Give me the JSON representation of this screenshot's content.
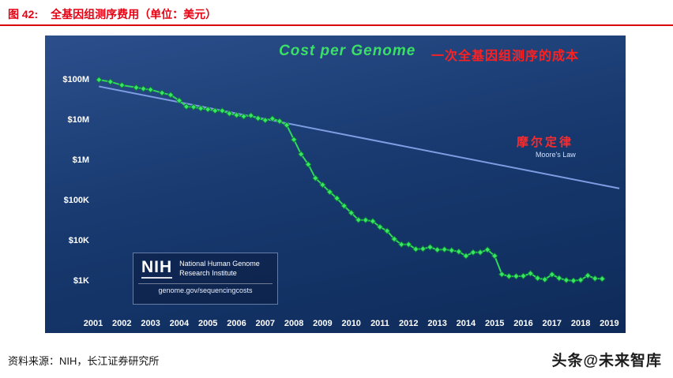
{
  "header": {
    "figure_label": "图 42:",
    "figure_title": "全基因组测序费用（单位：美元）"
  },
  "footer": {
    "source": "资料来源：NIH，长江证券研究所",
    "watermark": "头条@未来智库"
  },
  "chart": {
    "title_en": "Cost per Genome",
    "title_zh": "一次全基因组测序的成本",
    "moore_label_zh": "摩尔定律",
    "moore_label_en": "Moore's Law",
    "nih_logo": "NIH",
    "nih_name_line1": "National Human Genome",
    "nih_name_line2": "Research Institute",
    "nih_url": "genome.gov/sequencingcosts",
    "colors": {
      "background_navy": "#16376c",
      "series_green": "#2fd858",
      "marker_green_fill": "#39e468",
      "marker_green_stroke": "#0a7d33",
      "moore_blue": "#7e9ce2",
      "title_green": "#3ae066",
      "accent_red": "#ff2020",
      "caption_red": "#e60012",
      "tick_white": "#ffffff"
    }
  },
  "chart_data": {
    "type": "line",
    "title": "Cost per Genome",
    "subtitle_zh": "一次全基因组测序的成本",
    "y_scale": "log",
    "grid": false,
    "xlim": [
      2000.9,
      2019.4
    ],
    "ylim": [
      1000,
      100000000
    ],
    "x_ticks": [
      2001,
      2002,
      2003,
      2004,
      2005,
      2006,
      2007,
      2008,
      2009,
      2010,
      2011,
      2012,
      2013,
      2014,
      2015,
      2016,
      2017,
      2018,
      2019
    ],
    "y_ticks": [
      {
        "label": "$100M",
        "value": 100000000
      },
      {
        "label": "$10M",
        "value": 10000000
      },
      {
        "label": "$1M",
        "value": 1000000
      },
      {
        "label": "$100K",
        "value": 100000
      },
      {
        "label": "$10K",
        "value": 10000
      },
      {
        "label": "$1K",
        "value": 1000
      }
    ],
    "series": [
      {
        "name": "Cost per Genome",
        "color": "#2fd858",
        "marker": "diamond",
        "x": [
          2001.2,
          2001.6,
          2002.0,
          2002.5,
          2002.75,
          2003.0,
          2003.4,
          2003.7,
          2004.0,
          2004.25,
          2004.5,
          2004.75,
          2005.0,
          2005.25,
          2005.5,
          2005.75,
          2006.0,
          2006.25,
          2006.5,
          2006.75,
          2007.0,
          2007.25,
          2007.5,
          2007.75,
          2008.0,
          2008.25,
          2008.5,
          2008.75,
          2009.0,
          2009.25,
          2009.5,
          2009.75,
          2010.0,
          2010.25,
          2010.5,
          2010.75,
          2011.0,
          2011.25,
          2011.5,
          2011.75,
          2012.0,
          2012.25,
          2012.5,
          2012.75,
          2013.0,
          2013.25,
          2013.5,
          2013.75,
          2014.0,
          2014.25,
          2014.5,
          2014.75,
          2015.0,
          2015.25,
          2015.5,
          2015.75,
          2016.0,
          2016.25,
          2016.5,
          2016.75,
          2017.0,
          2017.25,
          2017.5,
          2017.75,
          2018.0,
          2018.25,
          2018.5,
          2018.75
        ],
        "y": [
          95000000,
          85000000,
          70000000,
          61000000,
          57000000,
          54000000,
          45000000,
          40000000,
          29000000,
          20500000,
          20000000,
          18500000,
          17500000,
          16200000,
          16200000,
          13800000,
          12600000,
          11700000,
          12300000,
          10500000,
          9400000,
          10300000,
          8900000,
          7100000,
          3100000,
          1350000,
          752000,
          342000,
          233000,
          155000,
          108000,
          70000,
          47000,
          31500,
          31100,
          29100,
          21000,
          16700,
          10500,
          7700,
          7700,
          5900,
          6000,
          6600,
          5700,
          5800,
          5500,
          5100,
          4000,
          4900,
          4900,
          5700,
          4000,
          1400,
          1250,
          1250,
          1270,
          1470,
          1120,
          1040,
          1380,
          1120,
          1000,
          970,
          1010,
          1300,
          1100,
          1080
        ]
      },
      {
        "name": "Moore's Law",
        "color": "#7e9ce2",
        "x": [
          2001.2,
          2019.35
        ],
        "y": [
          65000000,
          190000
        ]
      }
    ]
  }
}
